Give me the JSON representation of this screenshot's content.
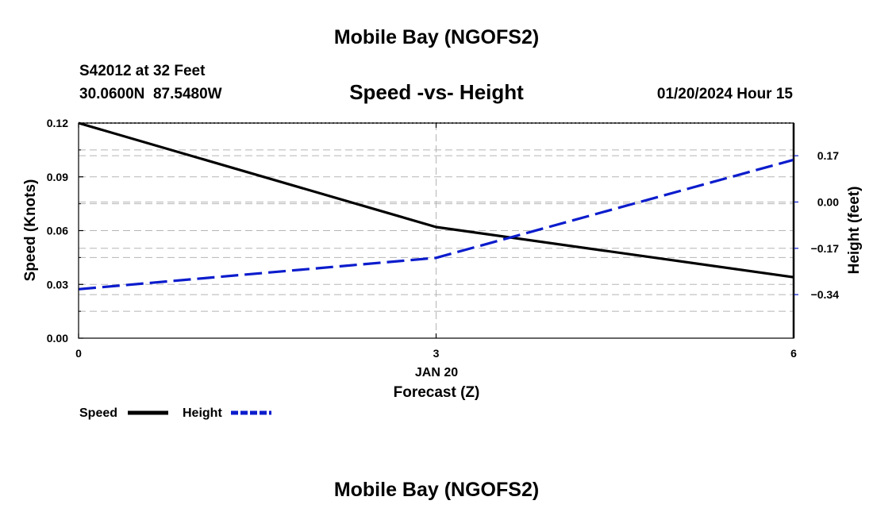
{
  "header": {
    "title": "Mobile Bay (NGOFS2)",
    "station_line": "S42012 at 32 Feet",
    "coords": "30.0600N  87.5480W",
    "datetime": "01/20/2024 Hour 15"
  },
  "footer": {
    "title": "Mobile Bay (NGOFS2)"
  },
  "chart_data": {
    "type": "line",
    "title": "Speed -vs- Height",
    "xlabel": "Forecast (Z)",
    "date_label": "JAN 20",
    "xlim": [
      0,
      6
    ],
    "x_ticks": [
      0,
      3,
      6
    ],
    "x_tick_labels": [
      "0",
      "3",
      "6"
    ],
    "left_axis": {
      "label": "Speed (Knots)",
      "ylim": [
        0,
        0.12
      ],
      "ticks": [
        0.0,
        0.03,
        0.06,
        0.09,
        0.12
      ],
      "tick_labels": [
        "0.00",
        "0.03",
        "0.06",
        "0.09",
        "0.12"
      ]
    },
    "right_axis": {
      "label": "Height (feet)",
      "ylim": [
        -0.5,
        0.29
      ],
      "ticks": [
        -0.34,
        -0.17,
        0.0,
        0.17
      ],
      "tick_labels": [
        "−0.34",
        "−0.17",
        "0.00",
        "0.17"
      ]
    },
    "series": [
      {
        "name": "Speed",
        "axis": "left",
        "color": "#000000",
        "style": "solid",
        "x": [
          0,
          3,
          6
        ],
        "values": [
          0.12,
          0.062,
          0.034
        ]
      },
      {
        "name": "Height",
        "axis": "right",
        "color": "#0b1ccc",
        "style": "dashed",
        "x": [
          0,
          3,
          6
        ],
        "values": [
          -0.32,
          -0.205,
          0.155
        ]
      }
    ],
    "legend": [
      "Speed",
      "Height"
    ],
    "legend_position": "bottom-left",
    "grid": true
  }
}
